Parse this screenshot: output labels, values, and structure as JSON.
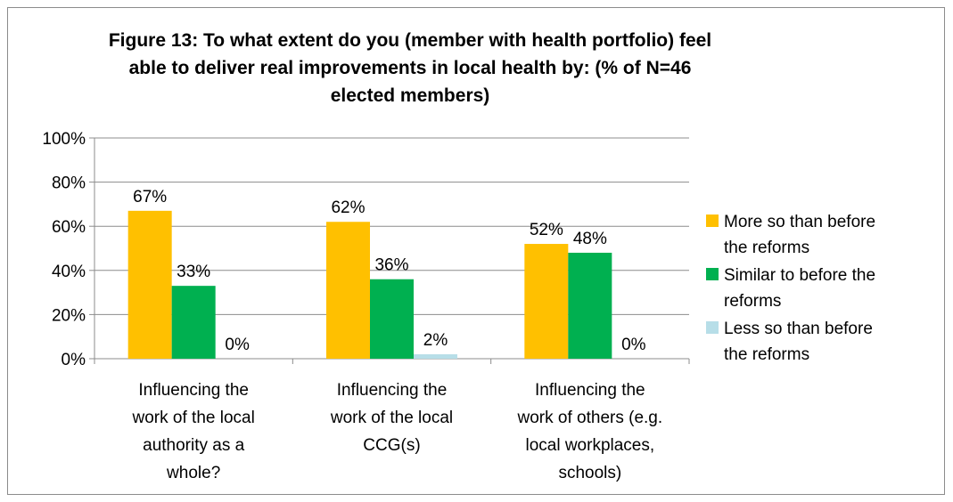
{
  "chart_data": {
    "type": "bar",
    "title": "Figure 13: To what extent do you (member with health portfolio) feel able to deliver real improvements in local health by: (% of N=46 elected members)",
    "categories": [
      [
        "Influencing the",
        "work of the local",
        "authority as a",
        "whole?"
      ],
      [
        "Influencing the",
        "work of the local",
        "CCG(s)"
      ],
      [
        "Influencing the",
        "work of others (e.g.",
        "local workplaces,",
        "schools)"
      ]
    ],
    "series": [
      {
        "name": "More so than before the reforms",
        "legend_lines": [
          "More so than before",
          "the reforms"
        ],
        "color": "#FFC000",
        "values": [
          67,
          62,
          52
        ],
        "labels": [
          "67%",
          "62%",
          "52%"
        ]
      },
      {
        "name": "Similar to before the reforms",
        "legend_lines": [
          "Similar to before the",
          "reforms"
        ],
        "color": "#00B050",
        "values": [
          33,
          36,
          48
        ],
        "labels": [
          "33%",
          "36%",
          "48%"
        ]
      },
      {
        "name": "Less so than before the reforms",
        "legend_lines": [
          "Less so than before",
          "the reforms"
        ],
        "color": "#B7DEE8",
        "values": [
          0,
          2,
          0
        ],
        "labels": [
          "0%",
          "2%",
          "0%"
        ]
      }
    ],
    "ylim": [
      0,
      100
    ],
    "yticks": [
      "0%",
      "20%",
      "40%",
      "60%",
      "80%",
      "100%"
    ],
    "grid": true,
    "legend_position": "right"
  }
}
